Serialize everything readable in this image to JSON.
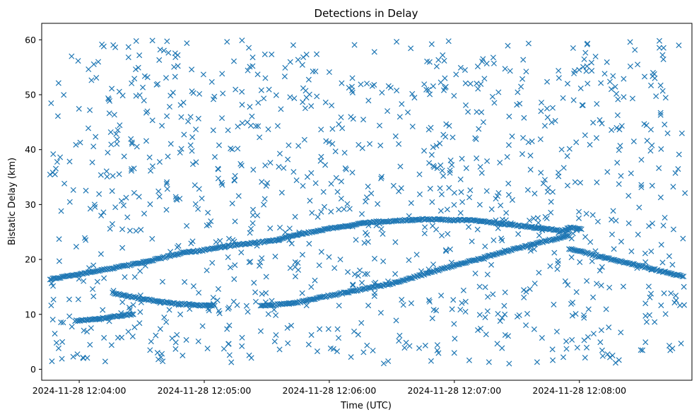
{
  "chart_data": {
    "type": "scatter",
    "title": "Detections in Delay",
    "xlabel": "Time (UTC)",
    "ylabel": "Bistatic Delay (km)",
    "marker": "x",
    "color": "#1f77b4",
    "grid": false,
    "xlim": [
      "2024-11-28 12:03:42",
      "2024-11-28 12:08:54"
    ],
    "ylim": [
      -2.0,
      63.0
    ],
    "xticks": [
      "2024-11-28 12:04:00",
      "2024-11-28 12:05:00",
      "2024-11-28 12:06:00",
      "2024-11-28 12:07:00",
      "2024-11-28 12:08:00"
    ],
    "yticks": [
      0,
      10,
      20,
      30,
      40,
      50,
      60
    ],
    "tracks": [
      {
        "points": [
          [
            "12:03:46",
            16.4
          ],
          [
            "12:04:10",
            18.0
          ],
          [
            "12:04:30",
            19.4
          ],
          [
            "12:04:50",
            21.2
          ],
          [
            "12:04:58",
            21.6
          ],
          [
            "12:05:10",
            22.4
          ],
          [
            "12:05:30",
            23.3
          ],
          [
            "12:05:36",
            23.5
          ]
        ]
      },
      {
        "points": [
          [
            "12:04:16",
            13.9
          ],
          [
            "12:04:30",
            12.8
          ],
          [
            "12:04:45",
            12.0
          ],
          [
            "12:05:00",
            11.6
          ],
          [
            "12:05:05",
            11.6
          ]
        ]
      },
      {
        "points": [
          [
            "12:05:27",
            11.5
          ],
          [
            "12:05:45",
            12.2
          ],
          [
            "12:06:00",
            13.4
          ],
          [
            "12:06:30",
            15.6
          ],
          [
            "12:07:00",
            18.9
          ],
          [
            "12:07:30",
            22.0
          ],
          [
            "12:07:55",
            24.4
          ]
        ]
      },
      {
        "points": [
          [
            "12:07:55",
            22.0
          ],
          [
            "12:08:10",
            20.5
          ],
          [
            "12:08:30",
            18.7
          ],
          [
            "12:08:50",
            16.9
          ]
        ]
      },
      {
        "points": [
          [
            "12:05:36",
            23.8
          ],
          [
            "12:05:55",
            25.3
          ],
          [
            "12:06:20",
            26.8
          ],
          [
            "12:06:45",
            27.3
          ],
          [
            "12:07:10",
            27.1
          ],
          [
            "12:07:30",
            26.2
          ],
          [
            "12:07:50",
            25.3
          ]
        ]
      },
      {
        "points": [
          [
            "12:03:58",
            8.8
          ],
          [
            "12:04:10",
            9.2
          ],
          [
            "12:04:20",
            9.8
          ],
          [
            "12:04:26",
            10.0
          ]
        ]
      },
      {
        "points": [
          [
            "12:07:50",
            25.0
          ],
          [
            "12:07:56",
            25.8
          ],
          [
            "12:08:01",
            25.5
          ]
        ]
      }
    ],
    "clutter": {
      "description_count": 1100,
      "y_range": [
        1.0,
        60.0
      ]
    }
  }
}
